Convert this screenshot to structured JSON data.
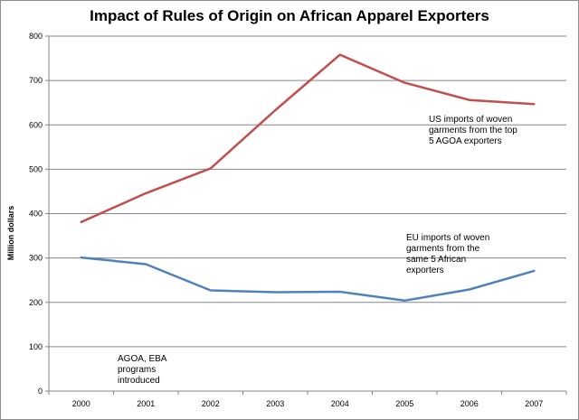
{
  "chart_data": {
    "type": "line",
    "title": "Impact of Rules of Origin on African Apparel  Exporters",
    "xlabel": "",
    "ylabel": "Million dollars",
    "x": [
      2000,
      2001,
      2002,
      2003,
      2004,
      2005,
      2006,
      2007
    ],
    "x_tick_labels": [
      "2000",
      "2001",
      "2002",
      "2003",
      "2004",
      "2005",
      "2006",
      "2007"
    ],
    "y_tick_labels": [
      "0",
      "100",
      "200",
      "300",
      "400",
      "500",
      "600",
      "700",
      "800"
    ],
    "ylim": [
      0,
      800
    ],
    "grid": "horizontal",
    "legend": "none",
    "series": [
      {
        "color": "#c0504d",
        "values": [
          381,
          446,
          502,
          633,
          758,
          695,
          656,
          647
        ]
      },
      {
        "color": "#4f81bd",
        "values": [
          301,
          286,
          227,
          223,
          224,
          204,
          229,
          271
        ]
      }
    ],
    "annotations": [
      {
        "text": "US imports of woven\ngarments from the top\n5 AGOA exporters"
      },
      {
        "text": "EU imports of woven\ngarments from  the\nsame 5 African\nexporters"
      },
      {
        "text": "AGOA, EBA\nprograms\nintroduced"
      }
    ]
  }
}
